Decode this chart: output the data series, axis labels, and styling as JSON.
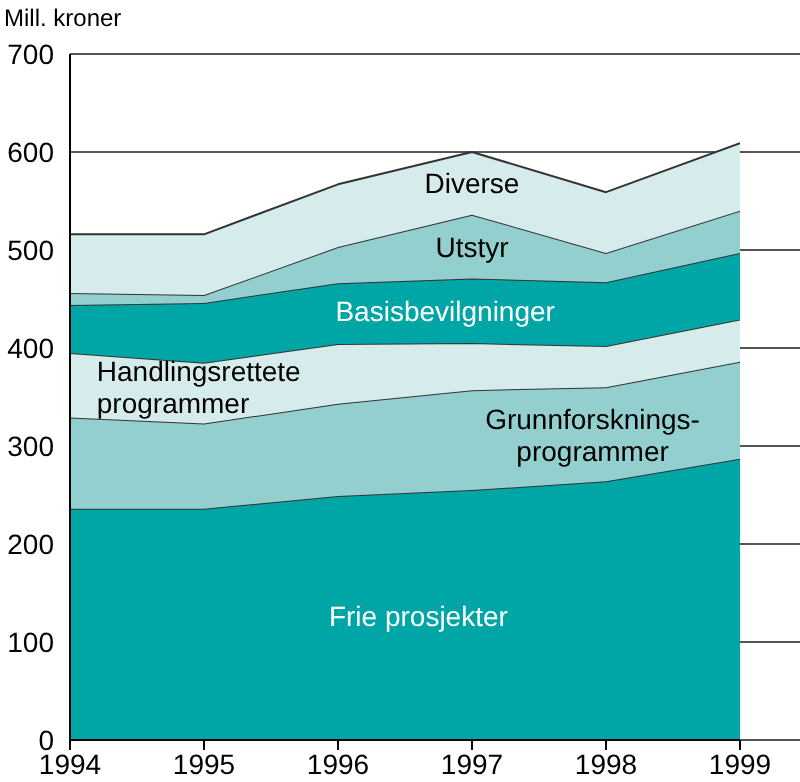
{
  "chart_data": {
    "type": "area",
    "ylabel": "Mill. kroner",
    "x": [
      1994,
      1995,
      1996,
      1997,
      1998,
      1999
    ],
    "xlim": [
      1994,
      1999
    ],
    "xticks": [
      1994,
      1995,
      1996,
      1997,
      1998,
      1999
    ],
    "ylim": [
      0,
      700
    ],
    "yticks": [
      0,
      100,
      200,
      300,
      400,
      500,
      600,
      700
    ],
    "grid": "y",
    "legend": false,
    "stacked": true,
    "series": [
      {
        "name": "Frie prosjekter",
        "color": "#00a6a6",
        "values": [
          236,
          236,
          249,
          255,
          264,
          287
        ]
      },
      {
        "name": "Grunnforsknings-programmer",
        "color": "#94cfcf",
        "values": [
          93,
          87,
          94,
          102,
          96,
          99
        ]
      },
      {
        "name": "Handlingsrettete programmer",
        "color": "#d5ebec",
        "values": [
          66,
          62,
          61,
          48,
          42,
          43
        ]
      },
      {
        "name": "Basisbevilgninger",
        "color": "#00a6a6",
        "values": [
          49,
          61,
          62,
          66,
          65,
          68
        ]
      },
      {
        "name": "Utstyr",
        "color": "#94cfcf",
        "values": [
          12,
          8,
          37,
          65,
          30,
          43
        ]
      },
      {
        "name": "Diverse",
        "color": "#d5ebec",
        "values": [
          60,
          62,
          64,
          64,
          62,
          69
        ]
      }
    ]
  }
}
